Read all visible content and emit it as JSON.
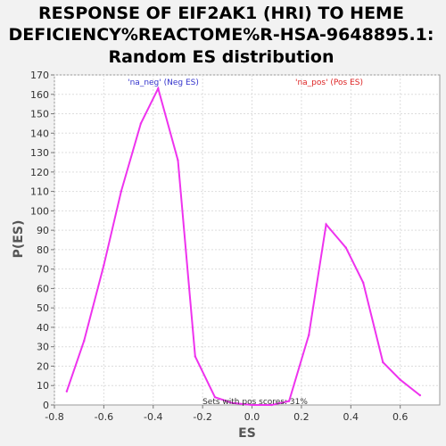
{
  "chart_data": {
    "type": "line",
    "title": [
      "RESPONSE OF EIF2AK1 (HRI) TO HEME",
      "DEFICIENCY%REACTOME%R-HSA-9648895.1:",
      "Random ES distribution"
    ],
    "xlabel": "ES",
    "ylabel": "P(ES)",
    "xlim": [
      -0.8,
      0.76
    ],
    "ylim": [
      0,
      170
    ],
    "xticks": [
      "-0.8",
      "-0.6",
      "-0.4",
      "-0.2",
      "0.0",
      "0.2",
      "0.4",
      "0.6"
    ],
    "xtick_values": [
      -0.8,
      -0.6,
      -0.4,
      -0.2,
      0.0,
      0.2,
      0.4,
      0.6
    ],
    "yticks": [
      "0",
      "10",
      "20",
      "30",
      "40",
      "50",
      "60",
      "70",
      "80",
      "90",
      "100",
      "110",
      "120",
      "130",
      "140",
      "150",
      "160",
      "170"
    ],
    "ytick_values": [
      0,
      10,
      20,
      30,
      40,
      50,
      60,
      70,
      80,
      90,
      100,
      110,
      120,
      130,
      140,
      150,
      160,
      170
    ],
    "grid": true,
    "series": [
      {
        "name": "",
        "color": "#ee33ee",
        "x": [
          -0.75,
          -0.68,
          -0.6,
          -0.53,
          -0.45,
          -0.38,
          -0.3,
          -0.23,
          -0.15,
          -0.08,
          0.0,
          0.08,
          0.15,
          0.23,
          0.3,
          0.38,
          0.45,
          0.53,
          0.6,
          0.68
        ],
        "y": [
          7,
          33,
          72,
          110,
          145,
          163,
          126,
          25,
          4,
          1,
          0,
          0,
          2,
          36,
          93,
          81,
          63,
          22,
          13,
          5
        ]
      }
    ],
    "annotations": {
      "neg_label": "'na_neg' (Neg ES)",
      "pos_label": "'na_pos' (Pos ES)",
      "sets_text": "Sets with pos scores: 31%"
    },
    "colors": {
      "neg": "#3333cc",
      "pos": "#dd2222",
      "line": "#ee33ee"
    }
  }
}
